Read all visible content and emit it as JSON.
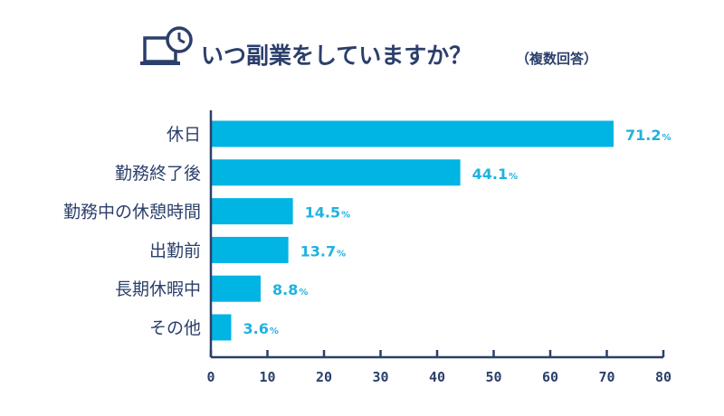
{
  "colors": {
    "bar": "#00b4e3",
    "navy": "#2b3f6b",
    "value_text": "#1fb2df"
  },
  "title_icon": "laptop-clock-icon",
  "chart_data": {
    "type": "bar",
    "orientation": "horizontal",
    "title": "いつ副業をしていますか？",
    "subtitle": "（複数回答）",
    "categories": [
      "休日",
      "勤務終了後",
      "勤務中の休憩時間",
      "出勤前",
      "長期休暇中",
      "その他"
    ],
    "values": [
      71.2,
      44.1,
      14.5,
      13.7,
      8.8,
      3.6
    ],
    "value_unit": "%",
    "xlim": [
      0,
      80
    ],
    "xticks": [
      "0",
      "10",
      "20",
      "30",
      "40",
      "50",
      "60",
      "70",
      "80"
    ],
    "grid": false
  }
}
